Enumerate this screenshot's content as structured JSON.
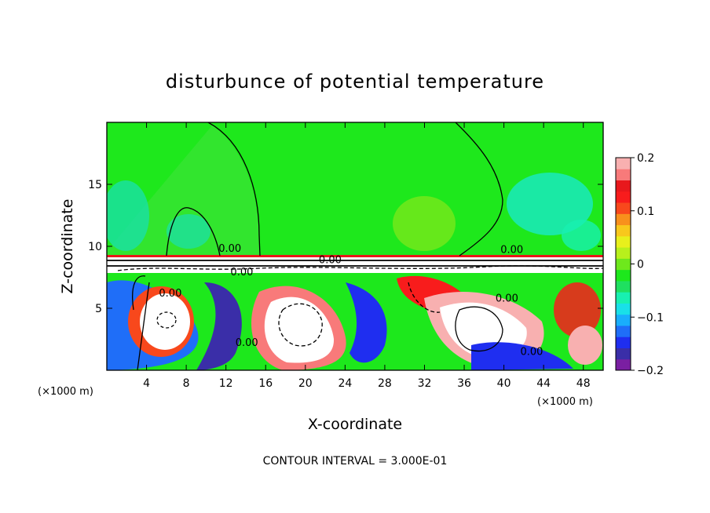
{
  "chart_data": {
    "type": "heatmap",
    "title": "disturbunce of potential temperature",
    "xlabel": "X-coordinate",
    "ylabel": "Z-coordinate",
    "x_unit_label": "(×1000 m)",
    "x_unit_label_right": "(×1000 m)",
    "xlim": [
      0,
      50
    ],
    "ylim": [
      0,
      20
    ],
    "xticks": [
      4,
      8,
      12,
      16,
      20,
      24,
      28,
      32,
      36,
      40,
      44,
      48
    ],
    "yticks": [
      5,
      10,
      15
    ],
    "colorbar": {
      "min": -0.2,
      "max": 0.2,
      "ticks": [
        {
          "value": 0.2,
          "label": "0.2"
        },
        {
          "value": 0.1,
          "label": "0.1"
        },
        {
          "value": 0,
          "label": "0"
        },
        {
          "value": -0.1,
          "label": "−0.1"
        },
        {
          "value": -0.2,
          "label": "−0.2"
        }
      ],
      "colors": [
        "#7a1fa2",
        "#3a2ea8",
        "#1f2ef0",
        "#1f6ef8",
        "#19aefc",
        "#19e0e8",
        "#18f0b0",
        "#1fe060",
        "#1de81c",
        "#6ee81c",
        "#b8f01c",
        "#e8f01c",
        "#f8c81c",
        "#f8901c",
        "#f8481c",
        "#f81c1c",
        "#e8181c",
        "#f87a7a",
        "#f8b0b0"
      ]
    },
    "contour_labels": [
      {
        "x": 12.4,
        "z": 9.8,
        "text": "0.00"
      },
      {
        "x": 22.5,
        "z": 8.9,
        "text": "0.00"
      },
      {
        "x": 40.8,
        "z": 9.7,
        "text": "0.00"
      },
      {
        "x": 6.4,
        "z": 6.2,
        "text": "0.00"
      },
      {
        "x": 13.6,
        "z": 7.9,
        "text": "0.00"
      },
      {
        "x": 14.1,
        "z": 2.2,
        "text": "0.00"
      },
      {
        "x": 40.3,
        "z": 5.8,
        "text": "0.00"
      },
      {
        "x": 42.8,
        "z": 1.5,
        "text": "0.00"
      }
    ],
    "annotation": "CONTOUR INTERVAL = 3.000E-01"
  }
}
